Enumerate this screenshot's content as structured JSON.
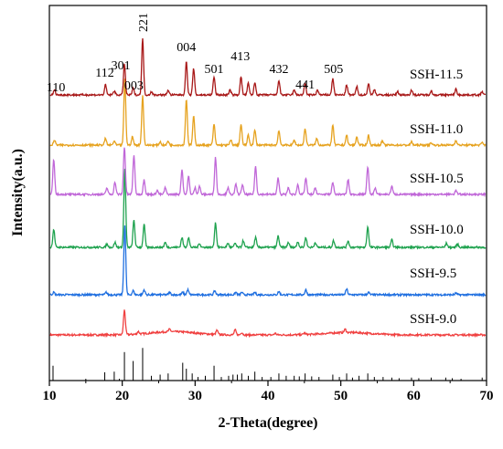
{
  "chart_data": {
    "type": "line",
    "title": "",
    "xlabel": "2-Theta(degree)",
    "ylabel": "Intensity(a.u.)",
    "xlim": [
      10,
      70
    ],
    "xticks": [
      10,
      20,
      30,
      40,
      50,
      60,
      70
    ],
    "y_tick_labels": false,
    "grid": false,
    "legend": "none",
    "peak_labels": [
      {
        "text": "110",
        "x": 10.9
      },
      {
        "text": "112",
        "x": 17.6
      },
      {
        "text": "301",
        "x": 19.8
      },
      {
        "text": "003",
        "x": 21.6
      },
      {
        "text": "221",
        "x": 22.8
      },
      {
        "text": "004",
        "x": 28.8
      },
      {
        "text": "501",
        "x": 32.6
      },
      {
        "text": "413",
        "x": 36.2
      },
      {
        "text": "432",
        "x": 41.5
      },
      {
        "text": "441",
        "x": 45.1
      },
      {
        "text": "505",
        "x": 49.0
      }
    ],
    "series": [
      {
        "name": "SSH-9.0",
        "color": "#f04040",
        "peaks": [
          [
            20.3,
            30
          ],
          [
            22.2,
            3
          ],
          [
            26.5,
            3
          ],
          [
            33.0,
            5
          ],
          [
            35.5,
            6
          ],
          [
            36.4,
            3
          ],
          [
            41.0,
            2
          ],
          [
            45.0,
            2
          ],
          [
            50.6,
            4
          ]
        ],
        "humps": [
          [
            27.0,
            4,
            3
          ],
          [
            51.0,
            3,
            3
          ]
        ]
      },
      {
        "name": "SSH-9.5",
        "color": "#1f6fe0",
        "peaks": [
          [
            10.6,
            3
          ],
          [
            17.8,
            3
          ],
          [
            20.35,
            85
          ],
          [
            21.5,
            5
          ],
          [
            23.0,
            6
          ],
          [
            26.5,
            3
          ],
          [
            28.3,
            3
          ],
          [
            29.0,
            6
          ],
          [
            32.7,
            5
          ],
          [
            35.6,
            3
          ],
          [
            36.4,
            3
          ],
          [
            38.2,
            3
          ],
          [
            41.5,
            4
          ],
          [
            45.2,
            6
          ],
          [
            50.8,
            7
          ],
          [
            53.8,
            3
          ],
          [
            65.8,
            2
          ]
        ],
        "humps": []
      },
      {
        "name": "SSH-10.0",
        "color": "#1ea24e",
        "peaks": [
          [
            10.6,
            22
          ],
          [
            17.9,
            4
          ],
          [
            19.0,
            6
          ],
          [
            20.35,
            95
          ],
          [
            21.6,
            33
          ],
          [
            23.0,
            28
          ],
          [
            25.9,
            6
          ],
          [
            28.2,
            12
          ],
          [
            29.1,
            12
          ],
          [
            30.6,
            5
          ],
          [
            32.8,
            30
          ],
          [
            34.5,
            5
          ],
          [
            35.5,
            5
          ],
          [
            36.6,
            8
          ],
          [
            38.3,
            12
          ],
          [
            41.4,
            14
          ],
          [
            42.8,
            6
          ],
          [
            44.1,
            7
          ],
          [
            45.2,
            12
          ],
          [
            46.5,
            6
          ],
          [
            49.0,
            8
          ],
          [
            51.0,
            8
          ],
          [
            53.7,
            25
          ],
          [
            57.0,
            9
          ],
          [
            64.5,
            5
          ],
          [
            66.0,
            4
          ]
        ],
        "humps": []
      },
      {
        "name": "SSH-10.5",
        "color": "#c067d8",
        "peaks": [
          [
            10.6,
            42
          ],
          [
            17.9,
            8
          ],
          [
            19.0,
            15
          ],
          [
            20.3,
            58
          ],
          [
            21.6,
            48
          ],
          [
            23.0,
            18
          ],
          [
            24.8,
            5
          ],
          [
            25.9,
            8
          ],
          [
            28.2,
            30
          ],
          [
            29.1,
            22
          ],
          [
            30.0,
            8
          ],
          [
            30.6,
            10
          ],
          [
            32.8,
            45
          ],
          [
            34.5,
            8
          ],
          [
            35.6,
            12
          ],
          [
            36.5,
            12
          ],
          [
            38.3,
            34
          ],
          [
            41.4,
            20
          ],
          [
            42.8,
            8
          ],
          [
            44.1,
            12
          ],
          [
            45.2,
            20
          ],
          [
            46.5,
            8
          ],
          [
            48.9,
            15
          ],
          [
            51.0,
            18
          ],
          [
            53.7,
            34
          ],
          [
            54.7,
            8
          ],
          [
            57.0,
            10
          ],
          [
            65.8,
            5
          ]
        ],
        "humps": []
      },
      {
        "name": "SSH-11.0",
        "color": "#e6a21e",
        "peaks": [
          [
            10.7,
            6
          ],
          [
            17.7,
            8
          ],
          [
            18.9,
            5
          ],
          [
            20.35,
            80
          ],
          [
            21.4,
            10
          ],
          [
            22.8,
            60
          ],
          [
            25.2,
            4
          ],
          [
            26.3,
            5
          ],
          [
            28.8,
            56
          ],
          [
            29.8,
            35
          ],
          [
            32.6,
            25
          ],
          [
            34.9,
            6
          ],
          [
            36.3,
            25
          ],
          [
            37.3,
            12
          ],
          [
            38.2,
            18
          ],
          [
            41.5,
            18
          ],
          [
            43.6,
            6
          ],
          [
            45.1,
            20
          ],
          [
            46.7,
            8
          ],
          [
            48.9,
            24
          ],
          [
            50.8,
            12
          ],
          [
            52.2,
            10
          ],
          [
            53.8,
            12
          ],
          [
            55.7,
            5
          ],
          [
            59.7,
            4
          ],
          [
            62.4,
            3
          ],
          [
            65.8,
            6
          ],
          [
            69.4,
            3
          ]
        ],
        "humps": []
      },
      {
        "name": "SSH-11.5",
        "color": "#a81818",
        "peaks": [
          [
            10.7,
            6
          ],
          [
            17.7,
            12
          ],
          [
            18.9,
            5
          ],
          [
            20.3,
            38
          ],
          [
            21.5,
            8
          ],
          [
            22.8,
            68
          ],
          [
            24.0,
            4
          ],
          [
            26.3,
            6
          ],
          [
            28.8,
            40
          ],
          [
            29.8,
            32
          ],
          [
            32.6,
            22
          ],
          [
            34.8,
            6
          ],
          [
            36.3,
            22
          ],
          [
            37.3,
            14
          ],
          [
            38.2,
            15
          ],
          [
            41.5,
            18
          ],
          [
            43.6,
            6
          ],
          [
            45.1,
            14
          ],
          [
            46.8,
            6
          ],
          [
            48.9,
            20
          ],
          [
            50.8,
            12
          ],
          [
            52.2,
            10
          ],
          [
            53.8,
            14
          ],
          [
            54.6,
            7
          ],
          [
            57.8,
            4
          ],
          [
            59.7,
            6
          ],
          [
            62.4,
            5
          ],
          [
            65.8,
            7
          ],
          [
            69.4,
            4
          ]
        ],
        "humps": []
      }
    ],
    "reference_pattern": {
      "color": "#000000",
      "sticks": [
        [
          10.5,
          25
        ],
        [
          15.0,
          3
        ],
        [
          17.6,
          14
        ],
        [
          18.9,
          15
        ],
        [
          19.6,
          3
        ],
        [
          20.3,
          48
        ],
        [
          21.5,
          33
        ],
        [
          22.8,
          55
        ],
        [
          24.0,
          8
        ],
        [
          25.2,
          10
        ],
        [
          26.3,
          12
        ],
        [
          28.3,
          30
        ],
        [
          28.8,
          20
        ],
        [
          29.6,
          12
        ],
        [
          30.4,
          6
        ],
        [
          31.4,
          8
        ],
        [
          32.6,
          25
        ],
        [
          33.6,
          6
        ],
        [
          34.6,
          8
        ],
        [
          35.2,
          10
        ],
        [
          35.8,
          10
        ],
        [
          36.4,
          12
        ],
        [
          37.3,
          8
        ],
        [
          38.2,
          15
        ],
        [
          39.2,
          6
        ],
        [
          40.4,
          6
        ],
        [
          41.5,
          12
        ],
        [
          42.5,
          8
        ],
        [
          43.6,
          8
        ],
        [
          44.3,
          7
        ],
        [
          45.1,
          12
        ],
        [
          46.0,
          7
        ],
        [
          47.0,
          6
        ],
        [
          48.9,
          10
        ],
        [
          49.8,
          6
        ],
        [
          50.8,
          12
        ],
        [
          51.6,
          5
        ],
        [
          52.5,
          8
        ],
        [
          53.7,
          12
        ],
        [
          54.6,
          6
        ],
        [
          55.8,
          6
        ],
        [
          57.0,
          5
        ],
        [
          58.0,
          4
        ],
        [
          59.7,
          5
        ],
        [
          60.7,
          4
        ],
        [
          62.4,
          5
        ],
        [
          64.4,
          5
        ],
        [
          65.3,
          4
        ],
        [
          66.5,
          3
        ],
        [
          69.4,
          5
        ]
      ]
    }
  }
}
